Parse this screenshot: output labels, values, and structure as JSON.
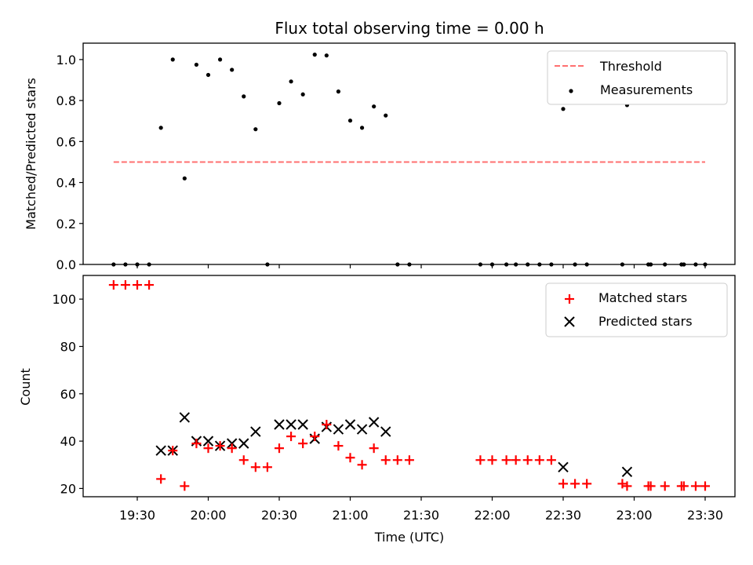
{
  "chart_data": [
    {
      "type": "scatter",
      "title": "Flux total observing time = 0.00 h",
      "ylabel": "Matched/Predicted stars",
      "xlabel": "",
      "ylim": [
        0,
        1.08
      ],
      "yticks": [
        "0.0",
        "0.2",
        "0.4",
        "0.6",
        "0.8",
        "1.0"
      ],
      "grid": false,
      "legend_position": "top-right",
      "threshold": {
        "name": "Threshold",
        "value": 0.5,
        "color": "#ff7070",
        "x_start": "19:20",
        "x_end": "23:30"
      },
      "series": [
        {
          "name": "Measurements",
          "color": "#000000",
          "points": [
            [
              "19:20",
              0
            ],
            [
              "19:25",
              0
            ],
            [
              "19:30",
              0
            ],
            [
              "19:35",
              0
            ],
            [
              "19:40",
              0.667
            ],
            [
              "19:45",
              1.0
            ],
            [
              "19:50",
              0.42
            ],
            [
              "19:55",
              0.975
            ],
            [
              "20:00",
              0.925
            ],
            [
              "20:05",
              1.0
            ],
            [
              "20:10",
              0.95
            ],
            [
              "20:15",
              0.82
            ],
            [
              "20:20",
              0.66
            ],
            [
              "20:25",
              0
            ],
            [
              "20:30",
              0.787
            ],
            [
              "20:35",
              0.893
            ],
            [
              "20:40",
              0.83
            ],
            [
              "20:45",
              1.024
            ],
            [
              "20:50",
              1.02
            ],
            [
              "20:55",
              0.844
            ],
            [
              "21:00",
              0.702
            ],
            [
              "21:05",
              0.667
            ],
            [
              "21:10",
              0.771
            ],
            [
              "21:15",
              0.727
            ],
            [
              "21:20",
              0
            ],
            [
              "21:25",
              0
            ],
            [
              "21:55",
              0
            ],
            [
              "22:00",
              0
            ],
            [
              "22:06",
              0
            ],
            [
              "22:10",
              0
            ],
            [
              "22:15",
              0
            ],
            [
              "22:20",
              0
            ],
            [
              "22:25",
              0
            ],
            [
              "22:30",
              0.759
            ],
            [
              "22:35",
              0
            ],
            [
              "22:40",
              0
            ],
            [
              "22:55",
              0
            ],
            [
              "22:57",
              0.778
            ],
            [
              "23:06",
              0
            ],
            [
              "23:07",
              0
            ],
            [
              "23:13",
              0
            ],
            [
              "23:20",
              0
            ],
            [
              "23:21",
              0
            ],
            [
              "23:26",
              0
            ],
            [
              "23:30",
              0
            ]
          ]
        }
      ]
    },
    {
      "type": "scatter",
      "title": "",
      "ylabel": "Count",
      "xlabel": "Time (UTC)",
      "ylim": [
        16.5,
        110
      ],
      "yticks": [
        "20",
        "40",
        "60",
        "80",
        "100"
      ],
      "xticks": [
        "19:30",
        "20:00",
        "20:30",
        "21:00",
        "21:30",
        "22:00",
        "22:30",
        "23:00",
        "23:30"
      ],
      "grid": false,
      "legend_position": "top-right",
      "series": [
        {
          "name": "Matched stars",
          "color": "#ff0000",
          "marker": "plus",
          "points": [
            [
              "19:20",
              106
            ],
            [
              "19:25",
              106
            ],
            [
              "19:30",
              106
            ],
            [
              "19:35",
              106
            ],
            [
              "19:40",
              24
            ],
            [
              "19:45",
              36
            ],
            [
              "19:50",
              21
            ],
            [
              "19:55",
              39
            ],
            [
              "20:00",
              37
            ],
            [
              "20:05",
              38
            ],
            [
              "20:10",
              37
            ],
            [
              "20:15",
              32
            ],
            [
              "20:20",
              29
            ],
            [
              "20:25",
              29
            ],
            [
              "20:30",
              37
            ],
            [
              "20:35",
              42
            ],
            [
              "20:40",
              39
            ],
            [
              "20:45",
              42
            ],
            [
              "20:50",
              47
            ],
            [
              "20:55",
              38
            ],
            [
              "21:00",
              33
            ],
            [
              "21:05",
              30
            ],
            [
              "21:10",
              37
            ],
            [
              "21:15",
              32
            ],
            [
              "21:20",
              32
            ],
            [
              "21:25",
              32
            ],
            [
              "21:55",
              32
            ],
            [
              "22:00",
              32
            ],
            [
              "22:06",
              32
            ],
            [
              "22:10",
              32
            ],
            [
              "22:15",
              32
            ],
            [
              "22:20",
              32
            ],
            [
              "22:25",
              32
            ],
            [
              "22:30",
              22
            ],
            [
              "22:35",
              22
            ],
            [
              "22:40",
              22
            ],
            [
              "22:55",
              22
            ],
            [
              "22:57",
              21
            ],
            [
              "23:06",
              21
            ],
            [
              "23:07",
              21
            ],
            [
              "23:13",
              21
            ],
            [
              "23:20",
              21
            ],
            [
              "23:21",
              21
            ],
            [
              "23:26",
              21
            ],
            [
              "23:30",
              21
            ]
          ]
        },
        {
          "name": "Predicted stars",
          "color": "#000000",
          "marker": "x",
          "points": [
            [
              "19:40",
              36
            ],
            [
              "19:45",
              36
            ],
            [
              "19:50",
              50
            ],
            [
              "19:55",
              40
            ],
            [
              "20:00",
              40
            ],
            [
              "20:05",
              38
            ],
            [
              "20:10",
              39
            ],
            [
              "20:15",
              39
            ],
            [
              "20:20",
              44
            ],
            [
              "20:30",
              47
            ],
            [
              "20:35",
              47
            ],
            [
              "20:40",
              47
            ],
            [
              "20:45",
              41
            ],
            [
              "20:50",
              46
            ],
            [
              "20:55",
              45
            ],
            [
              "21:00",
              47
            ],
            [
              "21:05",
              45
            ],
            [
              "21:10",
              48
            ],
            [
              "21:15",
              44
            ],
            [
              "22:30",
              29
            ],
            [
              "22:57",
              27
            ]
          ]
        }
      ]
    }
  ]
}
